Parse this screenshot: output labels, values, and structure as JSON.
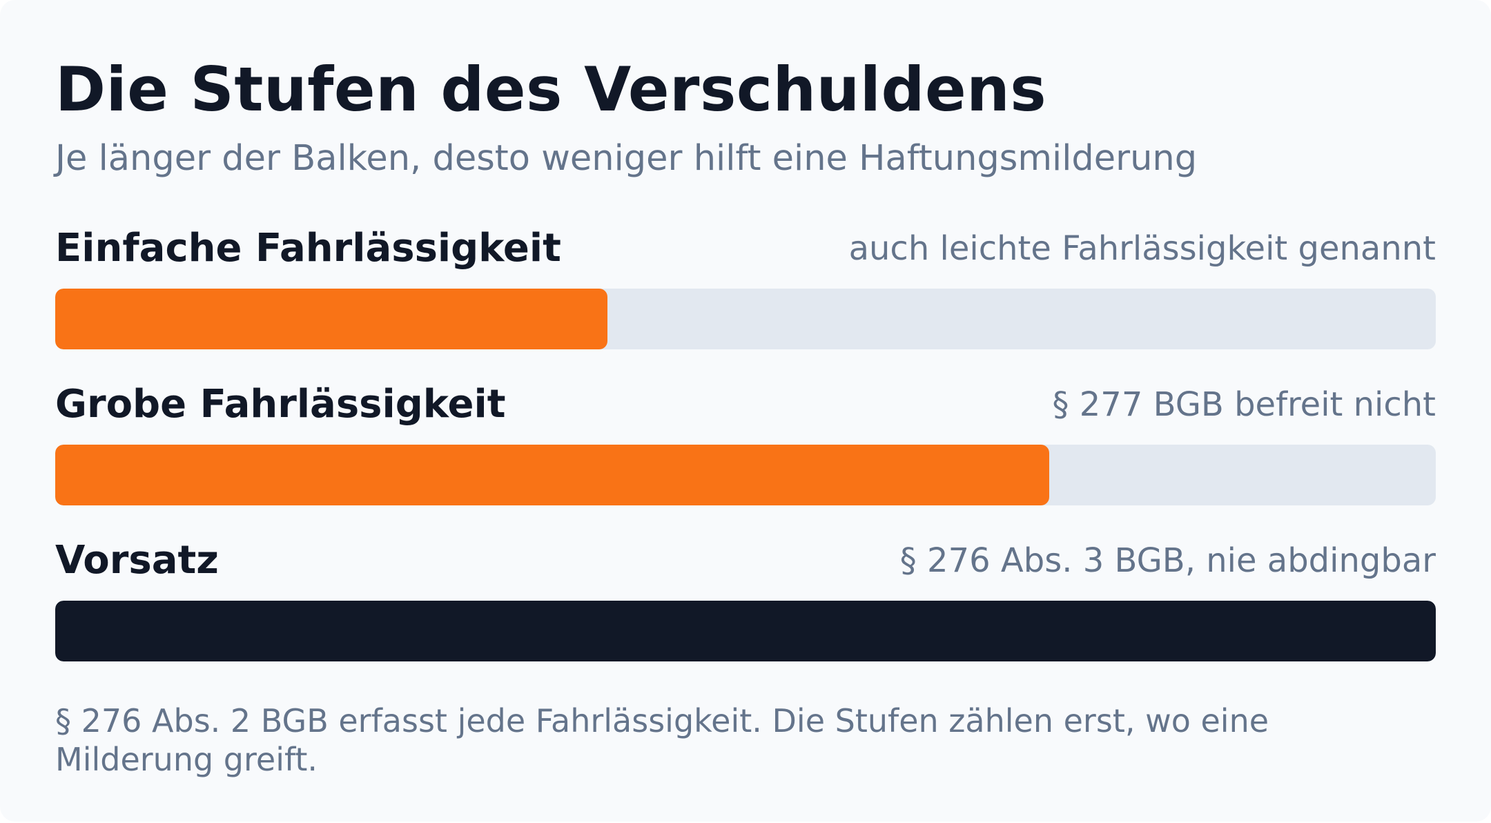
{
  "header": {
    "title": "Die Stufen des Verschuldens",
    "subtitle": "Je länger der Balken, desto weniger hilft eine Haftungsmilderung"
  },
  "chart_data": {
    "type": "bar",
    "orientation": "horizontal",
    "title": "Die Stufen des Verschuldens",
    "subtitle": "Je länger der Balken, desto weniger hilft eine Haftungsmilderung",
    "value_unit": "fraction_of_full",
    "ylim": [
      0,
      1
    ],
    "grid": false,
    "categories": [
      "Einfache Fahrlässigkeit",
      "Grobe Fahrlässigkeit",
      "Vorsatz"
    ],
    "values": [
      0.4,
      0.72,
      1.0
    ],
    "bars": [
      {
        "label": "Einfache Fahrlässigkeit",
        "note": "auch leichte Fahrlässigkeit genannt",
        "value": 0.4,
        "color": "#f97316"
      },
      {
        "label": "Grobe Fahrlässigkeit",
        "note": "§ 277 BGB befreit nicht",
        "value": 0.72,
        "color": "#f97316"
      },
      {
        "label": "Vorsatz",
        "note": "§ 276 Abs. 3 BGB, nie abdingbar",
        "value": 1.0,
        "color": "#111827"
      }
    ],
    "track_color": "#e2e8f0"
  },
  "footnote": "§ 276 Abs. 2 BGB erfasst jede Fahrlässigkeit. Die Stufen zählen erst, wo eine Milderung greift."
}
